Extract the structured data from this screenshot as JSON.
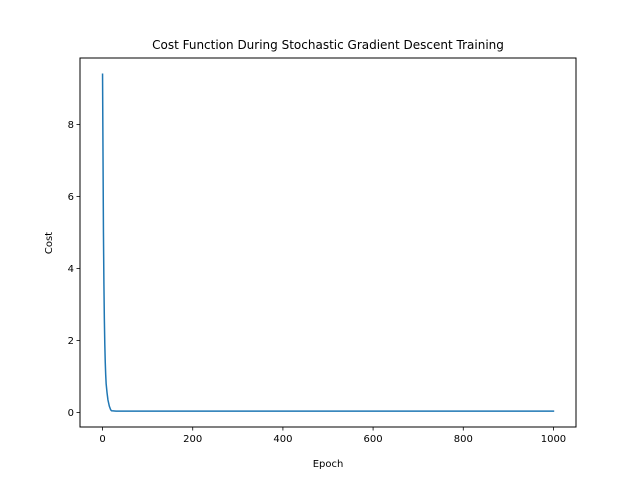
{
  "chart_data": {
    "type": "line",
    "title": "Cost Function During Stochastic Gradient Descent Training",
    "xlabel": "Epoch",
    "ylabel": "Cost",
    "xlim": [
      -50,
      1050
    ],
    "ylim": [
      -0.4,
      9.85
    ],
    "x_ticks": [
      0,
      200,
      400,
      600,
      800,
      1000
    ],
    "y_ticks": [
      0,
      2,
      4,
      6,
      8
    ],
    "grid": false,
    "series": [
      {
        "color": "#1f77b4",
        "x": [
          0,
          1,
          2,
          3,
          4,
          5,
          6,
          7,
          8,
          10,
          12,
          15,
          18,
          20,
          30,
          50,
          100,
          200,
          400,
          600,
          800,
          1000
        ],
        "y": [
          9.4,
          7.2,
          5.0,
          3.6,
          2.6,
          1.9,
          1.4,
          1.05,
          0.8,
          0.55,
          0.35,
          0.18,
          0.08,
          0.05,
          0.04,
          0.04,
          0.04,
          0.04,
          0.04,
          0.04,
          0.04,
          0.04
        ]
      }
    ]
  }
}
